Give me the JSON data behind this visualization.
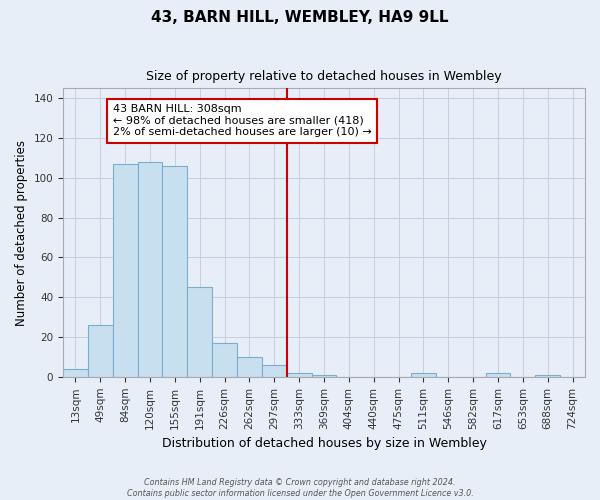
{
  "title": "43, BARN HILL, WEMBLEY, HA9 9LL",
  "subtitle": "Size of property relative to detached houses in Wembley",
  "xlabel": "Distribution of detached houses by size in Wembley",
  "ylabel": "Number of detached properties",
  "bar_labels": [
    "13sqm",
    "49sqm",
    "84sqm",
    "120sqm",
    "155sqm",
    "191sqm",
    "226sqm",
    "262sqm",
    "297sqm",
    "333sqm",
    "369sqm",
    "404sqm",
    "440sqm",
    "475sqm",
    "511sqm",
    "546sqm",
    "582sqm",
    "617sqm",
    "653sqm",
    "688sqm",
    "724sqm"
  ],
  "bar_values": [
    4,
    26,
    107,
    108,
    106,
    45,
    17,
    10,
    6,
    2,
    1,
    0,
    0,
    0,
    2,
    0,
    0,
    2,
    0,
    1,
    0
  ],
  "bar_color": "#c8dff0",
  "bar_edge_color": "#7aaecc",
  "vline_x": 8.5,
  "vline_color": "#cc0000",
  "annotation_line1": "43 BARN HILL: 308sqm",
  "annotation_line2": "← 98% of detached houses are smaller (418)",
  "annotation_line3": "2% of semi-detached houses are larger (10) →",
  "annotation_box_color": "#ffffff",
  "annotation_box_edge": "#cc0000",
  "ylim": [
    0,
    145
  ],
  "yticks": [
    0,
    20,
    40,
    60,
    80,
    100,
    120,
    140
  ],
  "footer_line1": "Contains HM Land Registry data © Crown copyright and database right 2024.",
  "footer_line2": "Contains public sector information licensed under the Open Government Licence v3.0.",
  "bg_color": "#e8eef8",
  "plot_bg_color": "#e8eef8",
  "grid_color": "#c5cfe0"
}
